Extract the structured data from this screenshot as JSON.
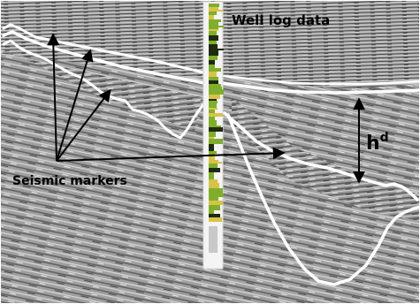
{
  "labels": {
    "well_log": "Well log data",
    "seismic_markers": "Seismic markers",
    "thickness_symbol": "h",
    "thickness_superscript": "d"
  },
  "colors": {
    "horizon": "#ffffff",
    "arrow": "#000000",
    "seismic_light": "#b8b8b8",
    "seismic_dark": "#4a4a4a",
    "well_track_bg": "#f4f4f4",
    "well_log_green": "#7fae2c",
    "well_log_dark": "#1f2a10",
    "well_log_yellow": "#d8c24a"
  }
}
